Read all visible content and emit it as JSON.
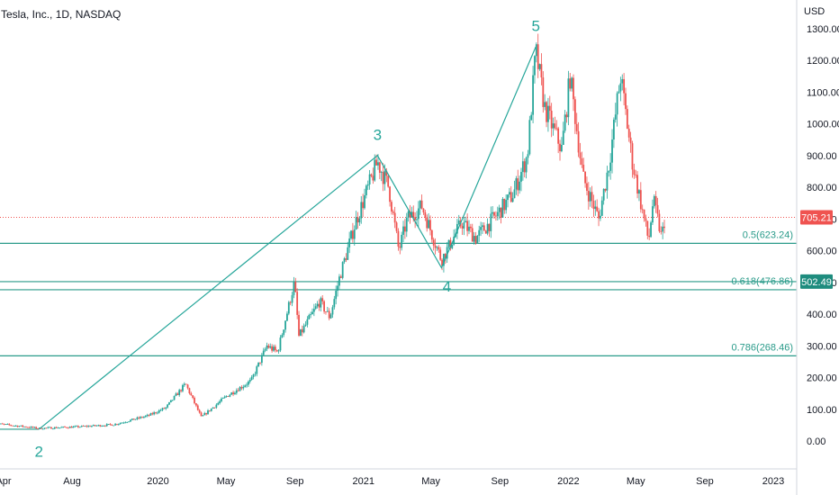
{
  "header": {
    "symbol": "Tesla, Inc., 1D, NASDAQ",
    "currency": "USD"
  },
  "colors": {
    "up": "#26a69a",
    "down": "#ef5350",
    "fib_line": "#2a9b8a",
    "wave_line": "#26a69a",
    "last_price": "#ef5350",
    "price_marker": "#1e8c7e"
  },
  "chart_data": {
    "type": "candlestick",
    "ylim": [
      -80,
      1330
    ],
    "y_ticks": [
      "1300.00",
      "1200.00",
      "1100.00",
      "1000.00",
      "900.00",
      "800.00",
      "700.00",
      "600.00",
      "500.00",
      "400.00",
      "300.00",
      "200.00",
      "100.00",
      "0.00"
    ],
    "x_ticks": [
      {
        "label": "Apr",
        "date": "2019-04-01"
      },
      {
        "label": "Aug",
        "date": "2019-08-01"
      },
      {
        "label": "2020",
        "date": "2020-01-01"
      },
      {
        "label": "May",
        "date": "2020-05-01"
      },
      {
        "label": "Sep",
        "date": "2020-09-01"
      },
      {
        "label": "2021",
        "date": "2021-01-01"
      },
      {
        "label": "May",
        "date": "2021-05-01"
      },
      {
        "label": "Sep",
        "date": "2021-09-01"
      },
      {
        "label": "2022",
        "date": "2022-01-01"
      },
      {
        "label": "May",
        "date": "2022-05-01"
      },
      {
        "label": "Sep",
        "date": "2022-09-01"
      },
      {
        "label": "2023",
        "date": "2023-01-01"
      }
    ],
    "price_path": [
      [
        "2019-03-15",
        55
      ],
      [
        "2019-05-10",
        45
      ],
      [
        "2019-06-03",
        40
      ],
      [
        "2019-08-15",
        45
      ],
      [
        "2019-10-15",
        52
      ],
      [
        "2019-12-15",
        80
      ],
      [
        "2020-01-15",
        105
      ],
      [
        "2020-02-19",
        180
      ],
      [
        "2020-03-18",
        75
      ],
      [
        "2020-05-01",
        140
      ],
      [
        "2020-06-15",
        190
      ],
      [
        "2020-07-13",
        300
      ],
      [
        "2020-08-01",
        280
      ],
      [
        "2020-08-31",
        500
      ],
      [
        "2020-09-08",
        330
      ],
      [
        "2020-10-15",
        440
      ],
      [
        "2020-11-02",
        390
      ],
      [
        "2020-11-20",
        520
      ],
      [
        "2020-12-18",
        690
      ],
      [
        "2021-01-26",
        880
      ],
      [
        "2021-02-15",
        800
      ],
      [
        "2021-03-05",
        600
      ],
      [
        "2021-03-20",
        700
      ],
      [
        "2021-04-15",
        740
      ],
      [
        "2021-05-20",
        570
      ],
      [
        "2021-06-25",
        690
      ],
      [
        "2021-07-20",
        640
      ],
      [
        "2021-08-25",
        710
      ],
      [
        "2021-09-25",
        780
      ],
      [
        "2021-10-20",
        900
      ],
      [
        "2021-11-04",
        1229
      ],
      [
        "2021-11-20",
        1050
      ],
      [
        "2021-12-20",
        920
      ],
      [
        "2022-01-04",
        1150
      ],
      [
        "2022-01-27",
        830
      ],
      [
        "2022-02-24",
        700
      ],
      [
        "2022-03-15",
        880
      ],
      [
        "2022-04-04",
        1150
      ],
      [
        "2022-04-25",
        880
      ],
      [
        "2022-05-24",
        630
      ],
      [
        "2022-06-01",
        760
      ],
      [
        "2022-06-07",
        716
      ],
      [
        "2022-06-16",
        640
      ],
      [
        "2022-06-22",
        705
      ]
    ],
    "last_price": 705.21,
    "marker_price": 502.49,
    "price_labels": [
      "705.21",
      "502.49"
    ],
    "fib_levels": [
      {
        "label": "0.5(623.24)",
        "value": 623.24
      },
      {
        "label": "0.618(476.86)",
        "value": 476.86
      },
      {
        "label": "0.786(268.46)",
        "value": 268.46
      }
    ],
    "horizontal_lines": [
      37,
      623.24,
      502.49,
      476.86,
      268.46
    ],
    "wave_labels": [
      {
        "label": "2",
        "date": "2019-06-03",
        "value": 37
      },
      {
        "label": "3",
        "date": "2021-01-26",
        "value": 900
      },
      {
        "label": "4",
        "date": "2021-05-20",
        "value": 546
      },
      {
        "label": "5",
        "date": "2021-11-04",
        "value": 1243
      }
    ]
  }
}
